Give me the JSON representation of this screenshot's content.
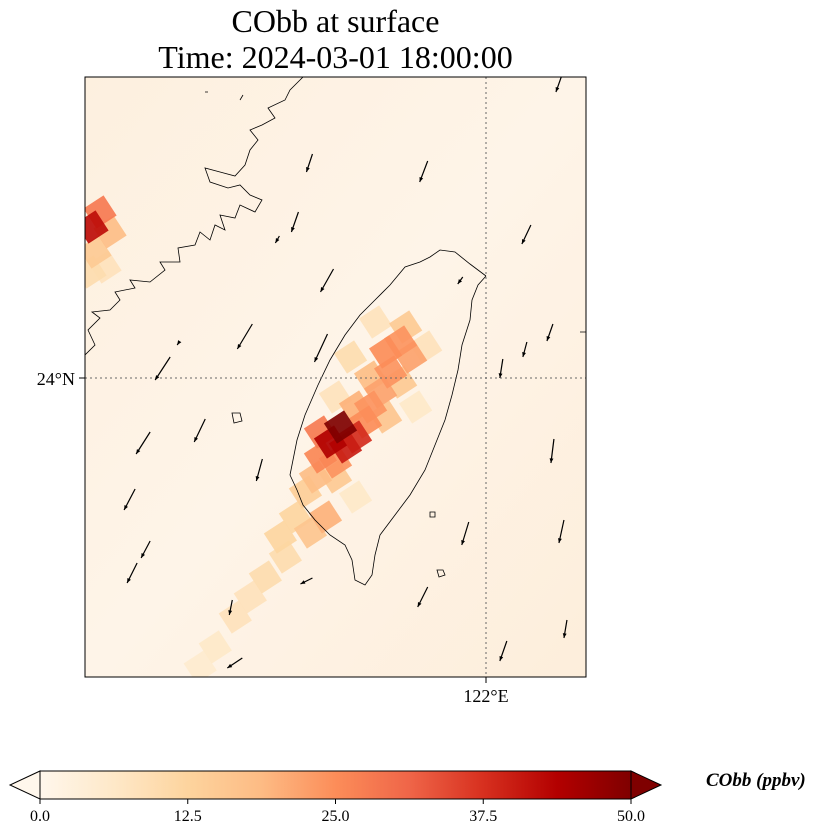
{
  "title": {
    "line1": "CObb at surface",
    "line2": "Time: 2024-03-01 18:00:00"
  },
  "chart_data": {
    "type": "heatmap",
    "title": "CObb at surface / Time: 2024-03-01 18:00:00",
    "extent": {
      "lon": [
        118,
        123
      ],
      "lat": [
        21,
        27
      ]
    },
    "gridlines": {
      "lon": [
        122
      ],
      "lat": [
        24
      ]
    },
    "tick_labels": {
      "lon": [
        "122°E"
      ],
      "lat": [
        "24°N"
      ]
    },
    "colorbar": {
      "label": "CObb (ppbv)",
      "range": [
        0,
        50
      ],
      "ticks": [
        "0.0",
        "12.5",
        "25.0",
        "37.5",
        "50.0"
      ],
      "extend": "both",
      "colormap": [
        "#fff7ec",
        "#fee8c8",
        "#fdd49e",
        "#fdbb84",
        "#fc8d59",
        "#ef6548",
        "#d7301f",
        "#b30000",
        "#7f0000"
      ]
    },
    "cells_lon_lat_value": [
      [
        121.2,
        24.5,
        15
      ],
      [
        121.15,
        24.35,
        24
      ],
      [
        121.0,
        24.25,
        25
      ],
      [
        121.25,
        24.2,
        22
      ],
      [
        120.85,
        24.0,
        18
      ],
      [
        121.05,
        24.05,
        24
      ],
      [
        120.95,
        23.85,
        22
      ],
      [
        121.15,
        23.95,
        15
      ],
      [
        120.7,
        23.7,
        20
      ],
      [
        120.85,
        23.7,
        24
      ],
      [
        120.8,
        23.55,
        25
      ],
      [
        121.0,
        23.6,
        16
      ],
      [
        120.7,
        23.4,
        38
      ],
      [
        120.6,
        23.3,
        40
      ],
      [
        120.35,
        23.45,
        28
      ],
      [
        120.45,
        23.35,
        44
      ],
      [
        120.55,
        23.5,
        50
      ],
      [
        120.35,
        23.2,
        26
      ],
      [
        120.5,
        23.15,
        24
      ],
      [
        120.3,
        23.0,
        18
      ],
      [
        120.5,
        23.0,
        15
      ],
      [
        120.2,
        22.85,
        14
      ],
      [
        120.4,
        22.6,
        20
      ],
      [
        120.25,
        22.45,
        16
      ],
      [
        120.1,
        22.6,
        12
      ],
      [
        119.95,
        22.4,
        12
      ],
      [
        120.0,
        22.2,
        10
      ],
      [
        119.8,
        22.0,
        10
      ],
      [
        119.65,
        21.8,
        8
      ],
      [
        119.5,
        21.6,
        8
      ],
      [
        119.3,
        21.3,
        6
      ],
      [
        119.15,
        21.1,
        5
      ],
      [
        120.5,
        23.8,
        8
      ],
      [
        120.65,
        24.2,
        10
      ],
      [
        120.9,
        24.55,
        8
      ],
      [
        121.4,
        24.3,
        8
      ],
      [
        121.3,
        23.7,
        6
      ],
      [
        120.7,
        22.8,
        6
      ],
      [
        118.07,
        25.5,
        42
      ],
      [
        118.15,
        25.65,
        28
      ],
      [
        118.25,
        25.45,
        18
      ],
      [
        118.1,
        25.25,
        15
      ],
      [
        118.2,
        25.1,
        8
      ],
      [
        118.05,
        25.05,
        10
      ]
    ],
    "wind_lon_lat_u_v": [
      [
        120.27,
        26.23,
        -0.06,
        -0.18
      ],
      [
        121.42,
        26.16,
        -0.08,
        -0.21
      ],
      [
        122.45,
        25.52,
        -0.09,
        -0.19
      ],
      [
        120.48,
        25.08,
        -0.13,
        -0.23
      ],
      [
        121.77,
        25.0,
        -0.05,
        -0.07
      ],
      [
        122.67,
        24.53,
        -0.06,
        -0.17
      ],
      [
        122.41,
        24.35,
        -0.04,
        -0.15
      ],
      [
        119.67,
        24.53,
        -0.15,
        -0.25
      ],
      [
        120.42,
        24.43,
        -0.13,
        -0.28
      ],
      [
        118.85,
        24.2,
        -0.15,
        -0.23
      ],
      [
        122.17,
        24.18,
        -0.03,
        -0.19
      ],
      [
        118.65,
        23.45,
        -0.14,
        -0.22
      ],
      [
        119.2,
        23.58,
        -0.11,
        -0.23
      ],
      [
        119.77,
        23.18,
        -0.06,
        -0.22
      ],
      [
        122.68,
        23.38,
        -0.03,
        -0.24
      ],
      [
        118.5,
        22.88,
        -0.11,
        -0.21
      ],
      [
        121.83,
        22.55,
        -0.07,
        -0.23
      ],
      [
        122.78,
        22.57,
        -0.05,
        -0.23
      ],
      [
        118.65,
        22.36,
        -0.09,
        -0.17
      ],
      [
        118.52,
        22.14,
        -0.1,
        -0.2
      ],
      [
        121.42,
        21.9,
        -0.1,
        -0.2
      ],
      [
        120.27,
        21.99,
        -0.12,
        -0.06
      ],
      [
        119.47,
        21.77,
        -0.03,
        -0.15
      ],
      [
        122.81,
        21.57,
        -0.03,
        -0.18
      ],
      [
        122.21,
        21.36,
        -0.07,
        -0.2
      ],
      [
        119.57,
        21.19,
        -0.15,
        -0.1
      ],
      [
        122.76,
        27.02,
        -0.06,
        -0.17
      ],
      [
        120.13,
        25.65,
        -0.07,
        -0.2
      ],
      [
        118.94,
        24.35,
        -0.02,
        -0.03
      ],
      [
        119.94,
        25.41,
        -0.04,
        -0.07
      ]
    ]
  }
}
